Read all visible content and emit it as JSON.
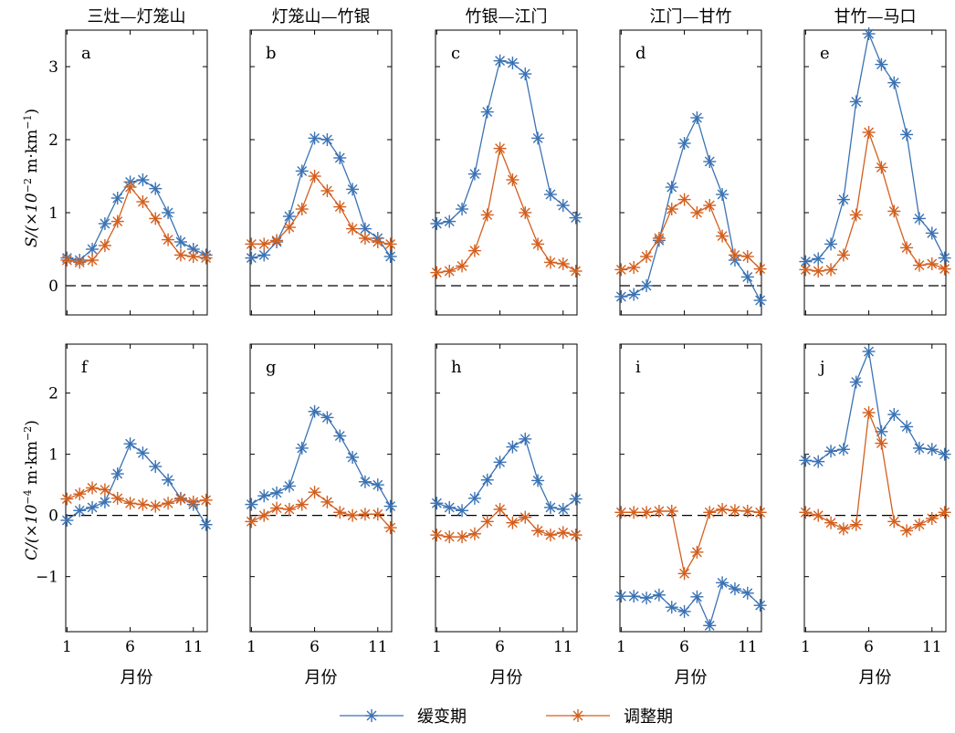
{
  "colors": {
    "series1": "#3a72b4",
    "series2": "#d35f1e"
  },
  "legend": {
    "series1": "缓变期",
    "series2": "调整期"
  },
  "xlabel": "月份",
  "ylabel_top": {
    "main": "S/(×10",
    "exp": "−2",
    "mid": " m·km",
    "exp2": "−1",
    "end": ")"
  },
  "ylabel_bottom": {
    "main": "C/(×10",
    "exp": "−4",
    "mid": " m·km",
    "exp2": "−2",
    "end": ")"
  },
  "chart_data": [
    {
      "type": "line",
      "title": "三灶—灯笼山",
      "letter": "a",
      "row": "S",
      "ylim": [
        -0.4,
        3.5
      ],
      "yticks": [
        0,
        1,
        2,
        3
      ],
      "xticks": [
        1,
        6,
        11
      ],
      "x": [
        1,
        2,
        3,
        4,
        5,
        6,
        7,
        8,
        9,
        10,
        11,
        12
      ],
      "series": [
        {
          "name": "缓变期",
          "values": [
            0.38,
            0.35,
            0.5,
            0.85,
            1.2,
            1.42,
            1.45,
            1.33,
            1.0,
            0.6,
            0.5,
            0.42
          ]
        },
        {
          "name": "调整期",
          "values": [
            0.35,
            0.32,
            0.35,
            0.55,
            0.88,
            1.35,
            1.15,
            0.92,
            0.63,
            0.42,
            0.4,
            0.38
          ]
        }
      ]
    },
    {
      "type": "line",
      "title": "灯笼山—竹银",
      "letter": "b",
      "row": "S",
      "ylim": [
        -0.4,
        3.5
      ],
      "yticks": [
        0,
        1,
        2,
        3
      ],
      "xticks": [
        1,
        6,
        11
      ],
      "x": [
        1,
        2,
        3,
        4,
        5,
        6,
        7,
        8,
        9,
        10,
        11,
        12
      ],
      "series": [
        {
          "name": "缓变期",
          "values": [
            0.38,
            0.42,
            0.6,
            0.95,
            1.57,
            2.02,
            2.0,
            1.75,
            1.32,
            0.78,
            0.65,
            0.4
          ]
        },
        {
          "name": "调整期",
          "values": [
            0.57,
            0.57,
            0.62,
            0.8,
            1.05,
            1.5,
            1.3,
            1.08,
            0.78,
            0.65,
            0.6,
            0.57
          ]
        }
      ]
    },
    {
      "type": "line",
      "title": "竹银—江门",
      "letter": "c",
      "row": "S",
      "ylim": [
        -0.4,
        3.5
      ],
      "yticks": [
        0,
        1,
        2,
        3
      ],
      "xticks": [
        1,
        6,
        11
      ],
      "x": [
        1,
        2,
        3,
        4,
        5,
        6,
        7,
        8,
        9,
        10,
        11,
        12
      ],
      "series": [
        {
          "name": "缓变期",
          "values": [
            0.85,
            0.88,
            1.05,
            1.53,
            2.38,
            3.08,
            3.05,
            2.9,
            2.02,
            1.25,
            1.1,
            0.93
          ]
        },
        {
          "name": "调整期",
          "values": [
            0.18,
            0.2,
            0.27,
            0.48,
            0.97,
            1.88,
            1.45,
            1.0,
            0.57,
            0.32,
            0.3,
            0.2
          ]
        }
      ]
    },
    {
      "type": "line",
      "title": "江门—甘竹",
      "letter": "d",
      "row": "S",
      "ylim": [
        -0.4,
        3.5
      ],
      "yticks": [
        0,
        1,
        2,
        3
      ],
      "xticks": [
        1,
        6,
        11
      ],
      "x": [
        1,
        2,
        3,
        4,
        5,
        6,
        7,
        8,
        9,
        10,
        11,
        12
      ],
      "series": [
        {
          "name": "缓变期",
          "values": [
            -0.15,
            -0.12,
            0.0,
            0.62,
            1.35,
            1.95,
            2.3,
            1.7,
            1.25,
            0.35,
            0.12,
            -0.2
          ]
        },
        {
          "name": "调整期",
          "values": [
            0.22,
            0.25,
            0.4,
            0.65,
            1.05,
            1.18,
            1.0,
            1.1,
            0.68,
            0.42,
            0.4,
            0.23
          ]
        }
      ]
    },
    {
      "type": "line",
      "title": "甘竹—马口",
      "letter": "e",
      "row": "S",
      "ylim": [
        -0.4,
        3.5
      ],
      "yticks": [
        0,
        1,
        2,
        3
      ],
      "xticks": [
        1,
        6,
        11
      ],
      "x": [
        1,
        2,
        3,
        4,
        5,
        6,
        7,
        8,
        9,
        10,
        11,
        12
      ],
      "series": [
        {
          "name": "缓变期",
          "values": [
            0.33,
            0.37,
            0.57,
            1.18,
            2.52,
            3.45,
            3.03,
            2.78,
            2.07,
            0.92,
            0.72,
            0.38
          ]
        },
        {
          "name": "调整期",
          "values": [
            0.22,
            0.2,
            0.22,
            0.42,
            0.97,
            2.1,
            1.62,
            1.02,
            0.52,
            0.28,
            0.3,
            0.23
          ]
        }
      ]
    },
    {
      "type": "line",
      "title": "",
      "letter": "f",
      "row": "C",
      "ylim": [
        -1.9,
        2.8
      ],
      "yticks": [
        -1,
        0,
        1,
        2
      ],
      "xticks": [
        1,
        6,
        11
      ],
      "x": [
        1,
        2,
        3,
        4,
        5,
        6,
        7,
        8,
        9,
        10,
        11,
        12
      ],
      "series": [
        {
          "name": "缓变期",
          "values": [
            -0.08,
            0.08,
            0.13,
            0.22,
            0.68,
            1.17,
            1.02,
            0.8,
            0.58,
            0.28,
            0.18,
            -0.15
          ]
        },
        {
          "name": "调整期",
          "values": [
            0.27,
            0.35,
            0.45,
            0.42,
            0.28,
            0.2,
            0.18,
            0.15,
            0.2,
            0.27,
            0.22,
            0.25
          ]
        }
      ]
    },
    {
      "type": "line",
      "title": "",
      "letter": "g",
      "row": "C",
      "ylim": [
        -1.9,
        2.8
      ],
      "yticks": [
        -1,
        0,
        1,
        2
      ],
      "xticks": [
        1,
        6,
        11
      ],
      "x": [
        1,
        2,
        3,
        4,
        5,
        6,
        7,
        8,
        9,
        10,
        11,
        12
      ],
      "series": [
        {
          "name": "缓变期",
          "values": [
            0.18,
            0.32,
            0.37,
            0.48,
            1.1,
            1.7,
            1.6,
            1.3,
            0.95,
            0.55,
            0.5,
            0.15
          ]
        },
        {
          "name": "调整期",
          "values": [
            -0.1,
            0.0,
            0.12,
            0.1,
            0.18,
            0.38,
            0.22,
            0.05,
            0.0,
            0.02,
            0.02,
            -0.2
          ]
        }
      ]
    },
    {
      "type": "line",
      "title": "",
      "letter": "h",
      "row": "C",
      "ylim": [
        -1.9,
        2.8
      ],
      "yticks": [
        -1,
        0,
        1,
        2
      ],
      "xticks": [
        1,
        6,
        11
      ],
      "x": [
        1,
        2,
        3,
        4,
        5,
        6,
        7,
        8,
        9,
        10,
        11,
        12
      ],
      "series": [
        {
          "name": "缓变期",
          "values": [
            0.2,
            0.13,
            0.08,
            0.28,
            0.58,
            0.87,
            1.12,
            1.25,
            0.57,
            0.13,
            0.1,
            0.27
          ]
        },
        {
          "name": "调整期",
          "values": [
            -0.32,
            -0.35,
            -0.35,
            -0.3,
            -0.1,
            0.1,
            -0.12,
            -0.03,
            -0.25,
            -0.32,
            -0.28,
            -0.32
          ]
        }
      ]
    },
    {
      "type": "line",
      "title": "",
      "letter": "i",
      "row": "C",
      "ylim": [
        -1.9,
        2.8
      ],
      "yticks": [
        -1,
        0,
        1,
        2
      ],
      "xticks": [
        1,
        6,
        11
      ],
      "x": [
        1,
        2,
        3,
        4,
        5,
        6,
        7,
        8,
        9,
        10,
        11,
        12
      ],
      "series": [
        {
          "name": "缓变期",
          "values": [
            -1.32,
            -1.32,
            -1.35,
            -1.3,
            -1.5,
            -1.57,
            -1.33,
            -1.8,
            -1.1,
            -1.2,
            -1.27,
            -1.47
          ]
        },
        {
          "name": "调整期",
          "values": [
            0.05,
            0.05,
            0.05,
            0.07,
            0.07,
            -0.95,
            -0.6,
            0.05,
            0.1,
            0.08,
            0.07,
            0.05
          ]
        }
      ]
    },
    {
      "type": "line",
      "title": "",
      "letter": "j",
      "row": "C",
      "ylim": [
        -1.9,
        2.8
      ],
      "yticks": [
        -1,
        0,
        1,
        2
      ],
      "xticks": [
        1,
        6,
        11
      ],
      "x": [
        1,
        2,
        3,
        4,
        5,
        6,
        7,
        8,
        9,
        10,
        11,
        12
      ],
      "series": [
        {
          "name": "缓变期",
          "values": [
            0.9,
            0.88,
            1.05,
            1.08,
            2.18,
            2.68,
            1.37,
            1.65,
            1.45,
            1.1,
            1.08,
            1.0
          ]
        },
        {
          "name": "调整期",
          "values": [
            0.05,
            0.0,
            -0.12,
            -0.22,
            -0.15,
            1.68,
            1.18,
            -0.1,
            -0.25,
            -0.15,
            -0.05,
            0.05
          ]
        }
      ]
    }
  ]
}
